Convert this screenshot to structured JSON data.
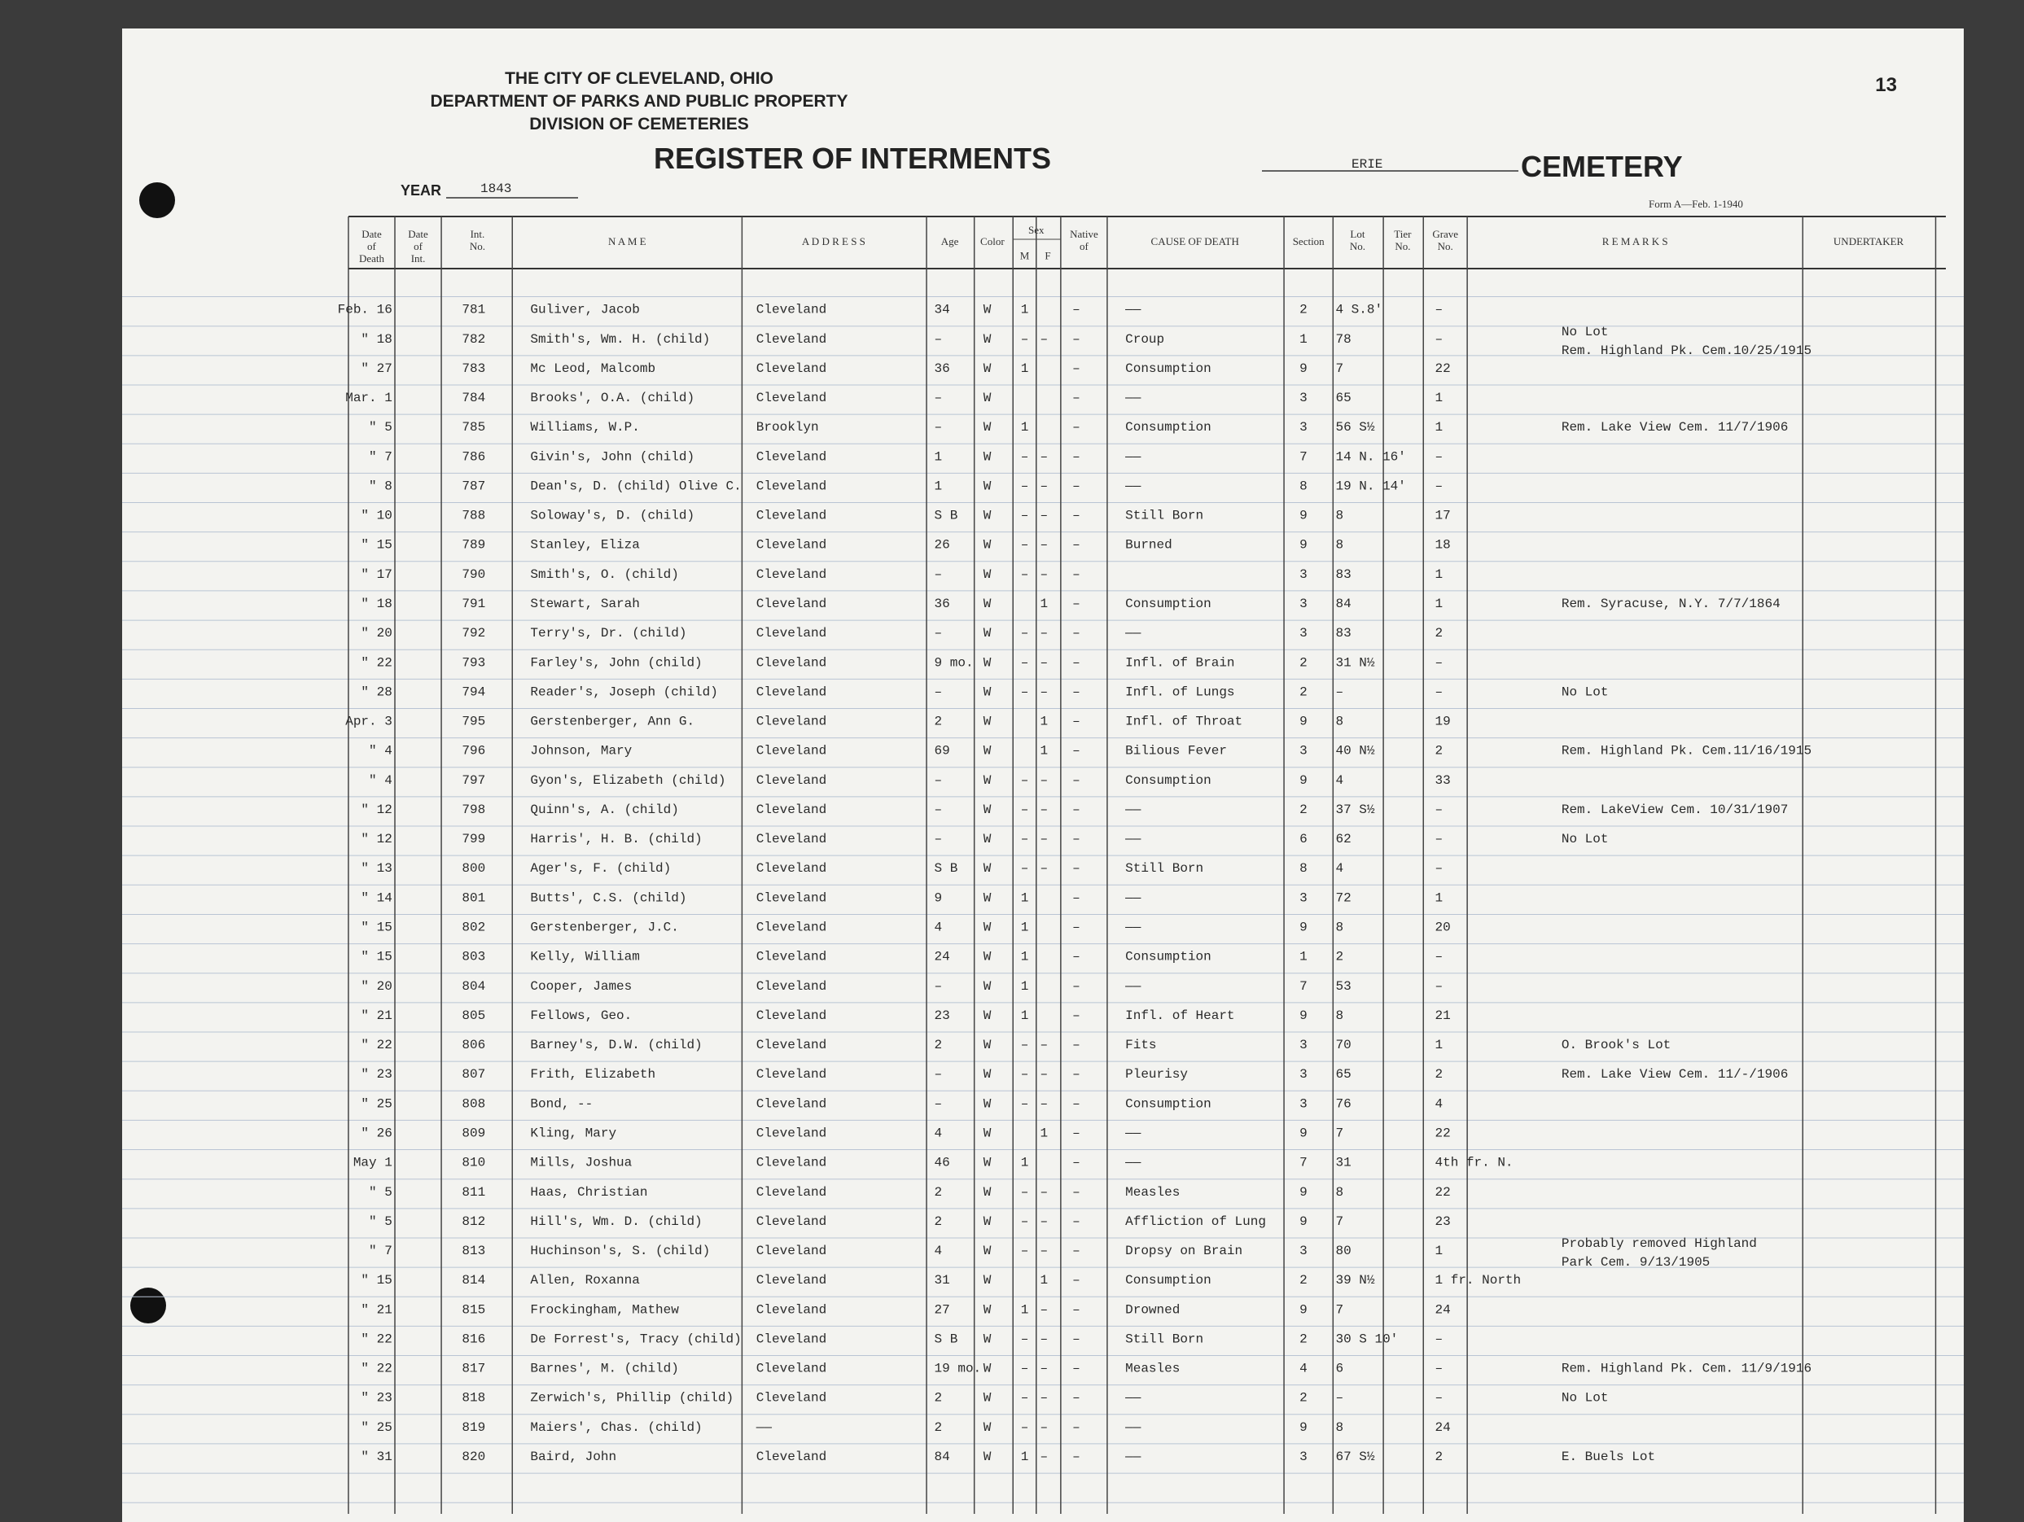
{
  "header": {
    "city": "THE CITY OF CLEVELAND, OHIO",
    "department": "DEPARTMENT OF PARKS AND PUBLIC PROPERTY",
    "division": "DIVISION OF CEMETERIES",
    "title": "REGISTER OF INTERMENTS",
    "year_label": "YEAR",
    "year": "1843",
    "cemetery_name": "ERIE",
    "cemetery_label": "CEMETERY",
    "page": "13",
    "form": "Form A—Feb. 1-1940"
  },
  "table": {
    "columns": [
      "Date of Death",
      "Date of Int.",
      "Int. No.",
      "N A M E",
      "A D D R E S S",
      "Age",
      "Color",
      "Sex",
      "M",
      "F",
      "Native of",
      "CAUSE OF DEATH",
      "Section",
      "Lot No.",
      "Tier No.",
      "Grave No.",
      "R E M A R K S",
      "UNDERTAKER"
    ],
    "rows": [
      [
        "Feb. 16",
        "781",
        "Guliver, Jacob",
        "Cleveland",
        "34",
        "W",
        "1",
        null,
        "–",
        "——",
        "2",
        "4 S.8'",
        "–"
      ],
      [
        "\" 18",
        "782",
        "Smith's, Wm. H. (child)",
        "Cleveland",
        "–",
        "W",
        "–",
        "–",
        "–",
        "Croup",
        "1",
        "78",
        "–",
        [
          "No Lot",
          "Rem. Highland Pk. Cem.10/25/1915"
        ]
      ],
      [
        "\" 27",
        "783",
        "Mc Leod, Malcomb",
        "Cleveland",
        "36",
        "W",
        "1",
        null,
        "–",
        "Consumption",
        "9",
        "7",
        "22"
      ],
      [
        "Mar. 1",
        "784",
        "Brooks', O.A. (child)",
        "Cleveland",
        "–",
        "W",
        null,
        null,
        "–",
        "——",
        "3",
        "65",
        "1"
      ],
      [
        "\" 5",
        "785",
        "Williams, W.P.",
        "Brooklyn",
        "–",
        "W",
        "1",
        null,
        "–",
        "Consumption",
        "3",
        "56 S½",
        "1",
        [
          "Rem. Lake View Cem. 11/7/1906"
        ]
      ],
      [
        "\" 7",
        "786",
        "Givin's, John (child)",
        "Cleveland",
        "1",
        "W",
        "–",
        "–",
        "–",
        "——",
        "7",
        "14 N. 16'",
        "–"
      ],
      [
        "\" 8",
        "787",
        "Dean's, D. (child) Olive C.",
        "Cleveland",
        "1",
        "W",
        "–",
        "–",
        "–",
        "——",
        "8",
        "19 N. 14'",
        "–"
      ],
      [
        "\" 10",
        "788",
        "Soloway's, D. (child)",
        "Cleveland",
        "S B",
        "W",
        "–",
        "–",
        "–",
        "Still Born",
        "9",
        "8",
        "17"
      ],
      [
        "\" 15",
        "789",
        "Stanley, Eliza",
        "Cleveland",
        "26",
        "W",
        "–",
        "–",
        "–",
        "Burned",
        "9",
        "8",
        "18"
      ],
      [
        "\" 17",
        "790",
        "Smith's, O. (child)",
        "Cleveland",
        "–",
        "W",
        "–",
        "–",
        "–",
        null,
        "3",
        "83",
        "1"
      ],
      [
        "\" 18",
        "791",
        "Stewart, Sarah",
        "Cleveland",
        "36",
        "W",
        null,
        "1",
        "–",
        "Consumption",
        "3",
        "84",
        "1",
        [
          "Rem. Syracuse, N.Y. 7/7/1864"
        ]
      ],
      [
        "\" 20",
        "792",
        "Terry's, Dr. (child)",
        "Cleveland",
        "–",
        "W",
        "–",
        "–",
        "–",
        "——",
        "3",
        "83",
        "2"
      ],
      [
        "\" 22",
        "793",
        "Farley's, John (child)",
        "Cleveland",
        "9 mo.",
        "W",
        "–",
        "–",
        "–",
        "Infl. of Brain",
        "2",
        "31 N½",
        "–"
      ],
      [
        "\" 28",
        "794",
        "Reader's, Joseph (child)",
        "Cleveland",
        "–",
        "W",
        "–",
        "–",
        "–",
        "Infl. of Lungs",
        "2",
        "–",
        "–",
        [
          "No Lot"
        ]
      ],
      [
        "Apr. 3",
        "795",
        "Gerstenberger, Ann G.",
        "Cleveland",
        "2",
        "W",
        null,
        "1",
        "–",
        "Infl. of Throat",
        "9",
        "8",
        "19"
      ],
      [
        "\" 4",
        "796",
        "Johnson, Mary",
        "Cleveland",
        "69",
        "W",
        null,
        "1",
        "–",
        "Bilious Fever",
        "3",
        "40 N½",
        "2",
        [
          "Rem. Highland Pk. Cem.11/16/1915"
        ]
      ],
      [
        "\" 4",
        "797",
        "Gyon's, Elizabeth (child)",
        "Cleveland",
        "–",
        "W",
        "–",
        "–",
        "–",
        "Consumption",
        "9",
        "4",
        "33"
      ],
      [
        "\" 12",
        "798",
        "Quinn's, A. (child)",
        "Cleveland",
        "–",
        "W",
        "–",
        "–",
        "–",
        "——",
        "2",
        "37 S½",
        "–",
        [
          "Rem. LakeView Cem. 10/31/1907"
        ]
      ],
      [
        "\" 12",
        "799",
        "Harris', H. B. (child)",
        "Cleveland",
        "–",
        "W",
        "–",
        "–",
        "–",
        "——",
        "6",
        "62",
        "–",
        [
          "No Lot"
        ]
      ],
      [
        "\" 13",
        "800",
        "Ager's, F. (child)",
        "Cleveland",
        "S B",
        "W",
        "–",
        "–",
        "–",
        "Still Born",
        "8",
        "4",
        "–"
      ],
      [
        "\" 14",
        "801",
        "Butts', C.S. (child)",
        "Cleveland",
        "9",
        "W",
        "1",
        null,
        "–",
        "——",
        "3",
        "72",
        "1"
      ],
      [
        "\" 15",
        "802",
        "Gerstenberger, J.C.",
        "Cleveland",
        "4",
        "W",
        "1",
        null,
        "–",
        "——",
        "9",
        "8",
        "20"
      ],
      [
        "\" 15",
        "803",
        "Kelly, William",
        "Cleveland",
        "24",
        "W",
        "1",
        null,
        "–",
        "Consumption",
        "1",
        "2",
        "–"
      ],
      [
        "\" 20",
        "804",
        "Cooper, James",
        "Cleveland",
        "–",
        "W",
        "1",
        null,
        "–",
        "——",
        "7",
        "53",
        "–"
      ],
      [
        "\" 21",
        "805",
        "Fellows, Geo.",
        "Cleveland",
        "23",
        "W",
        "1",
        null,
        "–",
        "Infl. of Heart",
        "9",
        "8",
        "21"
      ],
      [
        "\" 22",
        "806",
        "Barney's, D.W. (child)",
        "Cleveland",
        "2",
        "W",
        "–",
        "–",
        "–",
        "Fits",
        "3",
        "70",
        "1",
        [
          "O. Brook's Lot"
        ]
      ],
      [
        "\" 23",
        "807",
        "Frith, Elizabeth",
        "Cleveland",
        "–",
        "W",
        "–",
        "–",
        "–",
        "Pleurisy",
        "3",
        "65",
        "2",
        [
          "Rem. Lake View Cem. 11/-/1906"
        ]
      ],
      [
        "\" 25",
        "808",
        "Bond, --",
        "Cleveland",
        "–",
        "W",
        "–",
        "–",
        "–",
        "Consumption",
        "3",
        "76",
        "4"
      ],
      [
        "\" 26",
        "809",
        "Kling, Mary",
        "Cleveland",
        "4",
        "W",
        null,
        "1",
        "–",
        "——",
        "9",
        "7",
        "22"
      ],
      [
        "May 1",
        "810",
        "Mills, Joshua",
        "Cleveland",
        "46",
        "W",
        "1",
        null,
        "–",
        "——",
        "7",
        "31",
        "4th fr. N."
      ],
      [
        "\" 5",
        "811",
        "Haas, Christian",
        "Cleveland",
        "2",
        "W",
        "–",
        "–",
        "–",
        "Measles",
        "9",
        "8",
        "22"
      ],
      [
        "\" 5",
        "812",
        "Hill's, Wm. D. (child)",
        "Cleveland",
        "2",
        "W",
        "–",
        "–",
        "–",
        "Affliction of Lung",
        "9",
        "7",
        "23"
      ],
      [
        "\" 7",
        "813",
        "Huchinson's, S. (child)",
        "Cleveland",
        "4",
        "W",
        "–",
        "–",
        "–",
        "Dropsy on Brain",
        "3",
        "80",
        "1",
        [
          "Probably removed Highland",
          "Park Cem. 9/13/1905"
        ]
      ],
      [
        "\" 15",
        "814",
        "Allen, Roxanna",
        "Cleveland",
        "31",
        "W",
        null,
        "1",
        "–",
        "Consumption",
        "2",
        "39 N½",
        "1 fr. North"
      ],
      [
        "\" 21",
        "815",
        "Frockingham, Mathew",
        "Cleveland",
        "27",
        "W",
        "1",
        "–",
        "–",
        "Drowned",
        "9",
        "7",
        "24"
      ],
      [
        "\" 22",
        "816",
        "De Forrest's, Tracy (child)",
        "Cleveland",
        "S B",
        "W",
        "–",
        "–",
        "–",
        "Still Born",
        "2",
        "30 S 10'",
        "–"
      ],
      [
        "\" 22",
        "817",
        "Barnes', M. (child)",
        "Cleveland",
        "19 mo.",
        "W",
        "–",
        "–",
        "–",
        "Measles",
        "4",
        "6",
        "–",
        [
          "Rem. Highland Pk. Cem. 11/9/1916"
        ]
      ],
      [
        "\" 23",
        "818",
        "Zerwich's, Phillip (child)",
        "Cleveland",
        "2",
        "W",
        "–",
        "–",
        "–",
        "——",
        "2",
        "–",
        "–",
        [
          "No Lot"
        ]
      ],
      [
        "\" 25",
        "819",
        "Maiers', Chas. (child)",
        "——",
        "2",
        "W",
        "–",
        "–",
        "–",
        "——",
        "9",
        "8",
        "24"
      ],
      [
        "\" 31",
        "820",
        "Baird, John",
        "Cleveland",
        "84",
        "W",
        "1",
        "–",
        "–",
        "——",
        "3",
        "67 S½",
        "2",
        [
          "E. Buels Lot"
        ]
      ]
    ]
  }
}
